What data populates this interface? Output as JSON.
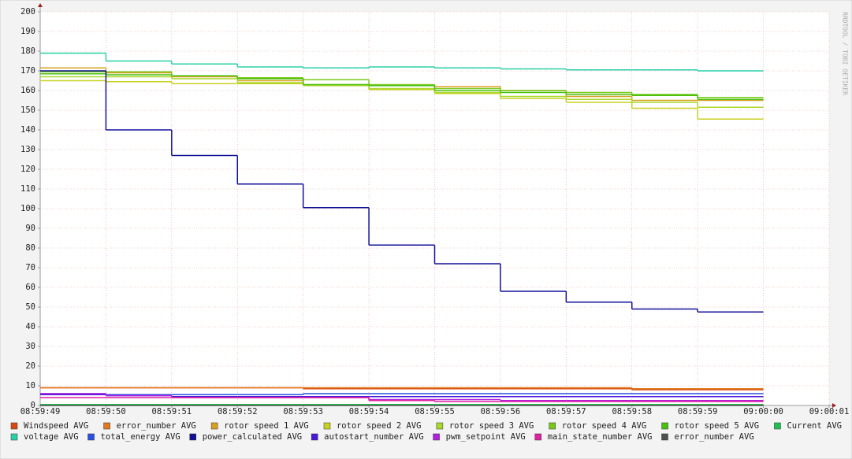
{
  "chart_data": {
    "type": "step-line",
    "watermark": "RRDTOOL / TOBI OETIKER",
    "x": [
      "08:59:49",
      "08:59:50",
      "08:59:51",
      "08:59:52",
      "08:59:53",
      "08:59:54",
      "08:59:55",
      "08:59:56",
      "08:59:57",
      "08:59:58",
      "08:59:59",
      "09:00:00",
      "09:00:01"
    ],
    "ylim": [
      0,
      200
    ],
    "yticks": [
      0,
      10,
      20,
      30,
      40,
      50,
      60,
      70,
      80,
      90,
      100,
      110,
      120,
      130,
      140,
      150,
      160,
      170,
      180,
      190,
      200
    ],
    "grid": true,
    "series": [
      {
        "name": "Windspeed AVG",
        "color": "#d84a12",
        "values": [
          null,
          9,
          9,
          9,
          9,
          8.5,
          8.5,
          8.5,
          8.5,
          8.5,
          8,
          8,
          null
        ]
      },
      {
        "name": "error_number AVG",
        "color": "#e0781c",
        "values": [
          null,
          9,
          9,
          9,
          9,
          9,
          9,
          9,
          9,
          9,
          8.5,
          8.5,
          null
        ]
      },
      {
        "name": "rotor speed 1 AVG",
        "color": "#d8a020",
        "values": [
          null,
          171.5,
          169,
          167,
          165,
          163,
          162.5,
          162,
          160,
          157,
          155,
          155,
          null
        ]
      },
      {
        "name": "rotor speed 2 AVG",
        "color": "#c8d020",
        "values": [
          null,
          165,
          164.5,
          163.5,
          163.5,
          162.5,
          160.5,
          158.5,
          156,
          154,
          151,
          145.5,
          null
        ]
      },
      {
        "name": "rotor speed 3 AVG",
        "color": "#a8d828",
        "values": [
          null,
          167,
          167,
          166,
          164,
          162.5,
          161,
          159,
          157,
          155.5,
          154,
          151.5,
          null
        ]
      },
      {
        "name": "rotor speed 4 AVG",
        "color": "#78c818",
        "values": [
          null,
          169.5,
          169.5,
          167.5,
          166.5,
          165.5,
          163,
          161,
          160,
          159,
          158,
          156.5,
          null
        ]
      },
      {
        "name": "rotor speed 5 AVG",
        "color": "#48c010",
        "values": [
          null,
          168.5,
          168,
          167.5,
          166,
          163,
          162.5,
          160,
          159,
          158,
          157.5,
          155.5,
          null
        ]
      },
      {
        "name": "Current AVG",
        "color": "#20c050",
        "values": [
          null,
          0.5,
          0.5,
          0.5,
          0.5,
          0.5,
          0.5,
          0.5,
          0.5,
          0.5,
          0.5,
          0.5,
          null
        ]
      },
      {
        "name": "voltage AVG",
        "color": "#28d0a8",
        "values": [
          null,
          179,
          175,
          173.5,
          172,
          171.5,
          172,
          171.5,
          171,
          170.5,
          170.5,
          170,
          null
        ]
      },
      {
        "name": "total_energy AVG",
        "color": "#2850e0",
        "values": [
          null,
          6,
          5.5,
          5.5,
          5.5,
          6,
          6,
          6,
          6,
          6,
          6,
          6,
          null
        ]
      },
      {
        "name": "power_calculated AVG",
        "color": "#101098",
        "values": [
          null,
          170,
          140,
          127,
          112.5,
          100.5,
          81.5,
          72,
          58,
          52.5,
          49,
          47.5,
          null
        ]
      },
      {
        "name": "autostart_number AVG",
        "color": "#4818d8",
        "values": [
          null,
          5.5,
          5,
          4.5,
          4.5,
          4.5,
          4.5,
          4.5,
          4.5,
          4.5,
          4.5,
          4.5,
          null
        ]
      },
      {
        "name": "pwm_setpoint AVG",
        "color": "#b020e0",
        "values": [
          null,
          6,
          5,
          4,
          4,
          4,
          3,
          3,
          2.5,
          2.5,
          2.5,
          2.5,
          null
        ]
      },
      {
        "name": "main_state_number AVG",
        "color": "#e020a0",
        "values": [
          null,
          4,
          4,
          4,
          4,
          4,
          2.5,
          2,
          2,
          2,
          2,
          2,
          null
        ]
      },
      {
        "name": "error_number AVG",
        "color": "#505050",
        "values": [
          null,
          0,
          0,
          0,
          0,
          0,
          0,
          0,
          0,
          0,
          0,
          0,
          null
        ]
      }
    ]
  }
}
